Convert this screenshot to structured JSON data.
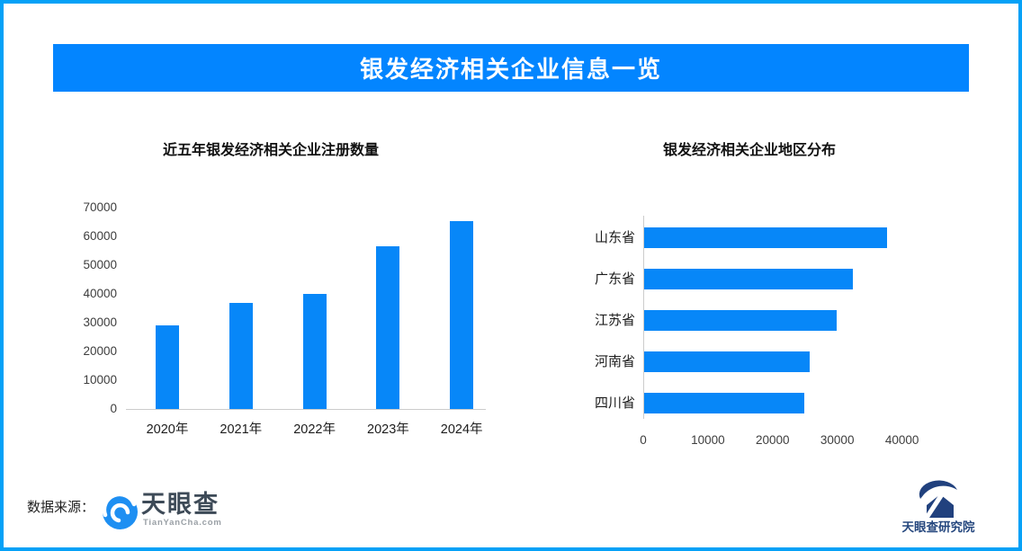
{
  "header": {
    "title": "银发经济相关企业信息一览"
  },
  "colors": {
    "frame_border": "#05A1F7",
    "banner_bg": "#0385FF",
    "bar": "#0787F8",
    "axis_line": "#CCCCCC",
    "tianyancha_blue": "#1E8FF2",
    "research_navy": "#21417E"
  },
  "chart_data": [
    {
      "type": "bar",
      "orientation": "vertical",
      "title": "近五年银发经济相关企业注册数量",
      "categories": [
        "2020年",
        "2021年",
        "2022年",
        "2023年",
        "2024年"
      ],
      "values": [
        29000,
        37000,
        40000,
        56500,
        65200
      ],
      "ylim": [
        0,
        70000
      ],
      "yticks": [
        0,
        10000,
        20000,
        30000,
        40000,
        50000,
        60000,
        70000
      ],
      "grid": false,
      "legend": "none",
      "bar_color": "#0787F8"
    },
    {
      "type": "bar",
      "orientation": "horizontal",
      "title": "银发经济相关企业地区分布",
      "categories": [
        "山东省",
        "广东省",
        "江苏省",
        "河南省",
        "四川省"
      ],
      "values": [
        37600,
        32300,
        29800,
        25600,
        24800
      ],
      "xlim": [
        0,
        40000
      ],
      "xticks": [
        0,
        10000,
        20000,
        30000,
        40000
      ],
      "grid": false,
      "legend": "none",
      "bar_color": "#0787F8"
    }
  ],
  "footer": {
    "source_label": "数据来源：",
    "tianyancha_name": "天眼查",
    "tianyancha_url": "TianYanCha.com",
    "research_institute": "天眼查研究院"
  }
}
